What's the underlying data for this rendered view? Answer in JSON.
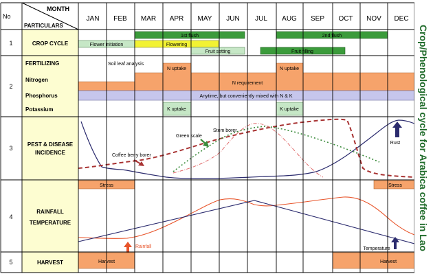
{
  "title": "Crop/Phenological cycle for Arabica coffee in Lao",
  "header": {
    "no": "No",
    "month": "MONTH",
    "particulars": "PARTICULARS"
  },
  "months": [
    "JAN",
    "FEB",
    "MAR",
    "APR",
    "MAY",
    "JUN",
    "JUL",
    "AUG",
    "SEP",
    "OCT",
    "NOV",
    "DEC"
  ],
  "rows": [
    {
      "no": "1",
      "label": "CROP CYCLE"
    },
    {
      "no": "2",
      "label": "FERTILIZING",
      "sublabels": [
        "Nitrogen",
        "Phosphorus",
        "Potassium"
      ]
    },
    {
      "no": "3",
      "label_lines": [
        "PEST & DISEASE",
        "INCIDENCE"
      ]
    },
    {
      "no": "4",
      "label_lines": [
        "RAINFALL",
        "TEMPERATURE"
      ]
    },
    {
      "no": "5",
      "label": "HARVEST"
    }
  ],
  "crop_cycle": {
    "first_flush": "1st flush",
    "second_flush": "2nd flush",
    "flower_initiation": "Flower initiation",
    "flowering": "Flowering",
    "fruit_setting": "Fruit setting",
    "fruit_filling": "Fruit filling"
  },
  "fertilizing": {
    "soil_leaf_analysis": "Soil leaf analysis",
    "n_uptake_1": "N uptake",
    "n_uptake_2": "N uptake",
    "n_requirement": "N requirement",
    "phosphorus_note": "Anytime, but conveniently mixed with N & K",
    "k_uptake_1": "K uptake",
    "k_uptake_2": "K uptake"
  },
  "pest": {
    "coffee_berry_borer": "Coffee berry borer",
    "green_scale": "Green scale",
    "stem_borer": "Stem borer",
    "rust": "Rust",
    "stress_1": "Stress",
    "stress_2": "Stress"
  },
  "weather": {
    "rainfall": "Rainfall",
    "temperature": "Temperature"
  },
  "harvest": {
    "label_1": "Harvest",
    "label_2": "Harvest"
  },
  "colors": {
    "crop_bar": "#3b9b3b",
    "flowering": "#f2f233",
    "light_green": "#c6e7c6",
    "orange": "#f6a36b",
    "lavender": "#c6c6ec",
    "label_yellow": "#fdfdd1",
    "pest_dark": "#2b2b6e",
    "pest_red": "#a83232",
    "pest_green": "#3b8b3b",
    "pest_light_red": "#e06a6a",
    "rain": "#e8542a",
    "temp": "#2b2b6e",
    "title": "#1f6b2a"
  }
}
